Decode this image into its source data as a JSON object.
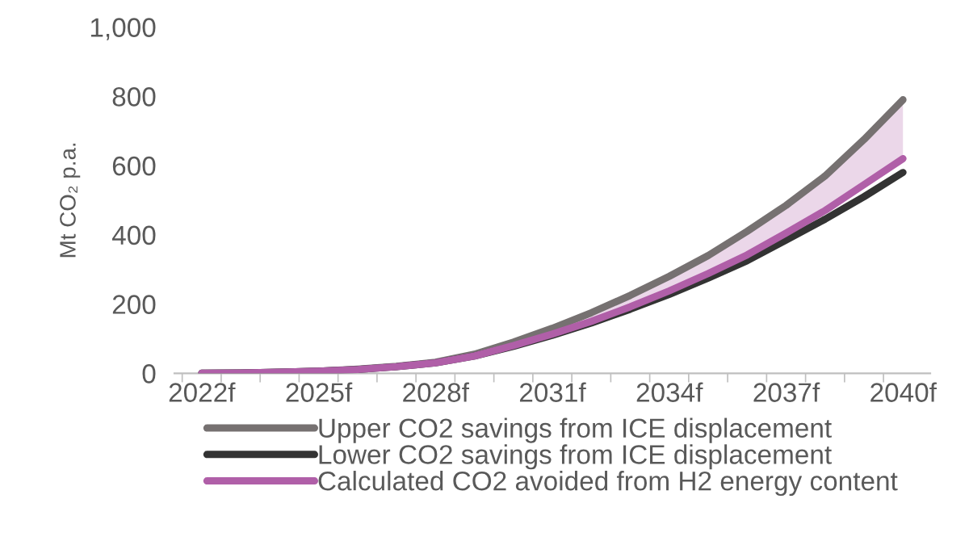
{
  "chart_data": {
    "type": "line",
    "ylabel": "Mt CO₂ p.a.",
    "categories": [
      "2022f",
      null,
      null,
      "2025f",
      null,
      null,
      "2028f",
      null,
      null,
      "2031f",
      null,
      null,
      "2034f",
      null,
      null,
      "2037f",
      null,
      null,
      "2040f"
    ],
    "series": [
      {
        "name": "Upper CO2 savings from ICE displacement",
        "color": "#767171",
        "values": [
          0,
          1,
          3,
          6,
          12,
          20,
          32,
          55,
          90,
          130,
          175,
          225,
          280,
          340,
          410,
          485,
          570,
          675,
          790
        ],
        "lower": [
          0,
          1,
          3,
          6,
          11,
          19,
          30,
          50,
          80,
          113,
          150,
          192,
          238,
          288,
          342,
          405,
          470,
          545,
          620
        ],
        "upper": [
          0,
          1,
          3,
          6,
          12,
          20,
          32,
          55,
          90,
          130,
          175,
          225,
          280,
          340,
          410,
          485,
          570,
          675,
          790
        ]
      },
      {
        "name": "Lower CO2 savings from ICE displacement",
        "color": "#333333",
        "values": [
          0,
          1,
          3,
          6,
          11,
          19,
          30,
          50,
          78,
          110,
          145,
          185,
          228,
          275,
          325,
          385,
          445,
          510,
          580
        ]
      },
      {
        "name": "Calculated CO2 avoided from H2 energy content",
        "color": "#b05fa8",
        "values": [
          0,
          1,
          3,
          6,
          11,
          19,
          30,
          50,
          80,
          113,
          150,
          192,
          238,
          288,
          342,
          405,
          470,
          545,
          620
        ]
      }
    ],
    "ylim": [
      0,
      1000
    ],
    "yticks": [
      0,
      200,
      400,
      {
        "value": 600,
        "label": "600"
      },
      800,
      {
        "value": 1000,
        "label": "1,000"
      }
    ],
    "grid": false,
    "legend": "bottom",
    "marker": "none",
    "line_style": "solid"
  }
}
